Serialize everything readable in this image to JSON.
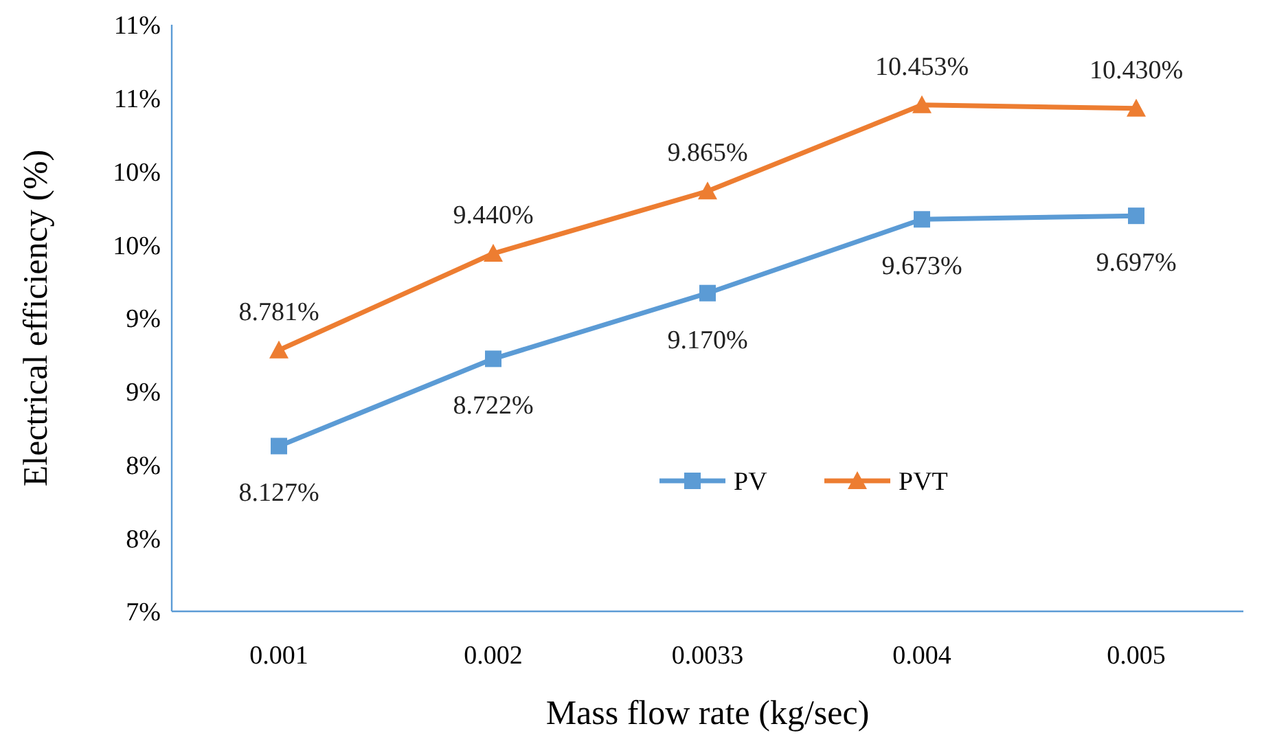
{
  "chart_data": {
    "type": "line",
    "xlabel": "Mass flow rate (kg/sec)",
    "ylabel": "Electrical efficiency (%)",
    "categories": [
      "0.001",
      "0.002",
      "0.0033",
      "0.004",
      "0.005"
    ],
    "ylim": [
      7,
      11
    ],
    "yticks": [
      {
        "value": 7,
        "label": "7%"
      },
      {
        "value": 7.5,
        "label": "8%"
      },
      {
        "value": 8,
        "label": "8%"
      },
      {
        "value": 8.5,
        "label": "9%"
      },
      {
        "value": 9,
        "label": "9%"
      },
      {
        "value": 9.5,
        "label": "10%"
      },
      {
        "value": 10,
        "label": "10%"
      },
      {
        "value": 10.5,
        "label": "11%"
      },
      {
        "value": 11,
        "label": "11%"
      }
    ],
    "grid": false,
    "legend": "bottom",
    "series": [
      {
        "name": "PV",
        "color": "#5b9bd5",
        "marker": "square",
        "values": [
          8.127,
          8.722,
          9.17,
          9.673,
          9.697
        ],
        "value_labels": [
          "8.127%",
          "8.722%",
          "9.170%",
          "9.673%",
          "9.697%"
        ]
      },
      {
        "name": "PVT",
        "color": "#ed7d31",
        "marker": "triangle",
        "values": [
          8.781,
          9.44,
          9.865,
          10.453,
          10.43
        ],
        "value_labels": [
          "8.781%",
          "9.440%",
          "9.865%",
          "10.453%",
          "10.430%"
        ]
      }
    ]
  }
}
